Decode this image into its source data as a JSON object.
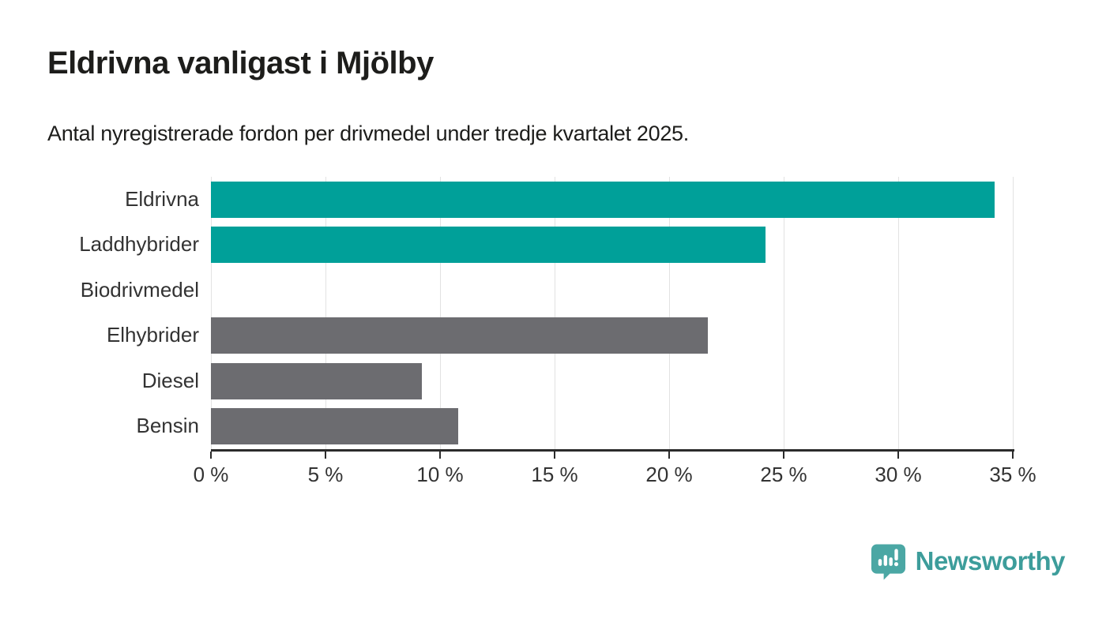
{
  "header": {
    "title": "Eldrivna vanligast i Mjölby",
    "subtitle": "Antal nyregistrerade fordon per drivmedel under tredje kvartalet 2025."
  },
  "chart_data": {
    "type": "bar",
    "orientation": "horizontal",
    "title": "Eldrivna vanligast i Mjölby",
    "subtitle": "Antal nyregistrerade fordon per drivmedel under tredje kvartalet 2025.",
    "categories": [
      "Eldrivna",
      "Laddhybrider",
      "Biodrivmedel",
      "Elhybrider",
      "Diesel",
      "Bensin"
    ],
    "values": [
      34.2,
      24.2,
      0,
      21.7,
      9.2,
      10.8
    ],
    "unit": "%",
    "bar_colors": [
      "#00a099",
      "#00a099",
      "#6c6c70",
      "#6c6c70",
      "#6c6c70",
      "#6c6c70"
    ],
    "xlabel": "",
    "ylabel": "",
    "xlim": [
      0,
      35
    ],
    "x_ticks": [
      0,
      5,
      10,
      15,
      20,
      25,
      30,
      35
    ],
    "x_tick_labels": [
      "0 %",
      "5 %",
      "10 %",
      "15 %",
      "20 %",
      "25 %",
      "30 %",
      "35 %"
    ],
    "grid": "vertical",
    "legend": "none"
  },
  "footer": {
    "brand": "Newsworthy"
  },
  "colors": {
    "accent_teal": "#00a099",
    "neutral_gray": "#6c6c70",
    "logo_bubble_teal": "#4ba7a4",
    "wordmark_teal": "#3d9d9b",
    "axis": "#2b2b2b",
    "gridline": "#e2e2e2",
    "text_dark": "#1d1d1b",
    "label_gray": "#333333"
  }
}
